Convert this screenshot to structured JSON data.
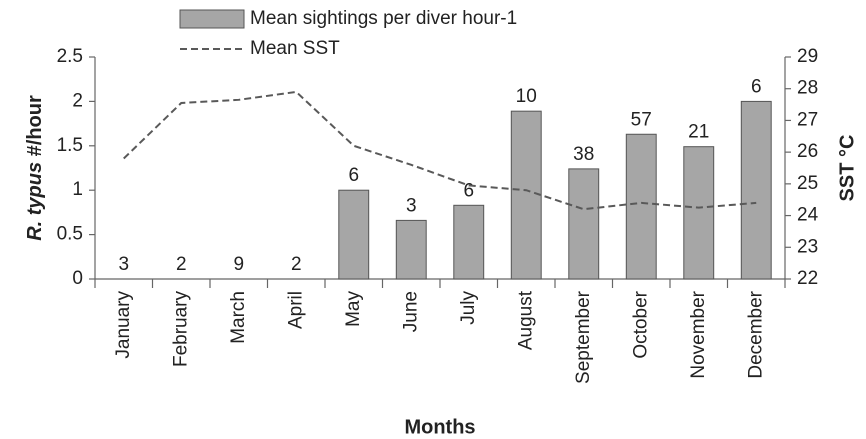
{
  "chart_data": {
    "type": "bar",
    "categories": [
      "January",
      "February",
      "March",
      "April",
      "May",
      "June",
      "July",
      "August",
      "September",
      "October",
      "November",
      "December"
    ],
    "series": [
      {
        "name": "Mean sightings per diver hour-1",
        "type": "bar",
        "color": "#a6a6a6",
        "values": [
          0,
          0,
          0,
          0,
          1.0,
          0.66,
          0.83,
          1.89,
          1.24,
          1.63,
          1.49,
          2.0
        ]
      },
      {
        "name": "Mean SST",
        "type": "line",
        "axis": "y2",
        "color": "#595959",
        "dashed": true,
        "values": [
          25.8,
          27.55,
          27.65,
          27.9,
          26.2,
          25.6,
          24.95,
          24.8,
          24.2,
          24.4,
          24.25,
          24.4
        ]
      }
    ],
    "bar_annotations": [
      3,
      2,
      9,
      2,
      6,
      3,
      6,
      10,
      38,
      57,
      21,
      6
    ],
    "xlabel": "Months",
    "ylabel": {
      "species": "R. typus",
      "unit": "#/hour"
    },
    "y2label": "SST °C",
    "ylim": [
      0,
      2.5
    ],
    "yticks": [
      0,
      0.5,
      1,
      1.5,
      2,
      2.5
    ],
    "y2lim": [
      22,
      29
    ],
    "y2ticks": [
      22,
      23,
      24,
      25,
      26,
      27,
      28,
      29
    ],
    "grid": false
  }
}
